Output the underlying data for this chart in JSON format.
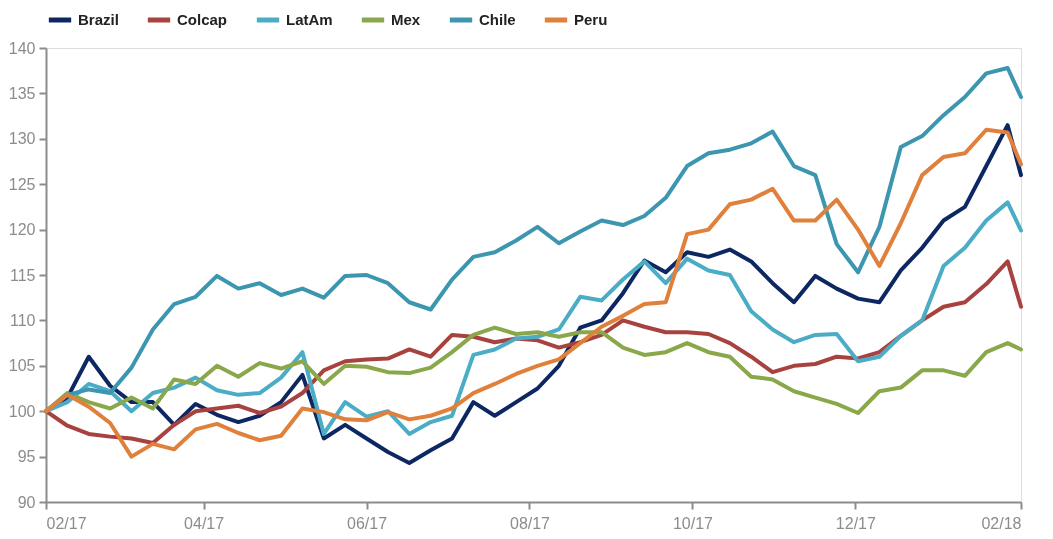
{
  "chart_data": {
    "type": "line",
    "x": [
      "2017-02-01",
      "2017-02-09",
      "2017-02-17",
      "2017-02-25",
      "2017-03-05",
      "2017-03-13",
      "2017-03-21",
      "2017-03-29",
      "2017-04-06",
      "2017-04-14",
      "2017-04-22",
      "2017-04-30",
      "2017-05-08",
      "2017-05-16",
      "2017-05-24",
      "2017-06-01",
      "2017-06-09",
      "2017-06-17",
      "2017-06-25",
      "2017-07-03",
      "2017-07-11",
      "2017-07-19",
      "2017-07-27",
      "2017-08-04",
      "2017-08-12",
      "2017-08-20",
      "2017-08-28",
      "2017-09-05",
      "2017-09-13",
      "2017-09-21",
      "2017-09-29",
      "2017-10-07",
      "2017-10-15",
      "2017-10-23",
      "2017-10-31",
      "2017-11-08",
      "2017-11-16",
      "2017-11-24",
      "2017-12-02",
      "2017-12-10",
      "2017-12-18",
      "2017-12-26",
      "2018-01-03",
      "2018-01-11",
      "2018-01-19",
      "2018-01-27",
      "2018-02-01"
    ],
    "series": [
      {
        "name": "Brazil",
        "color": "#0d2763",
        "values": [
          100,
          101.5,
          106,
          102.8,
          101,
          101,
          98.5,
          100.8,
          99.6,
          98.8,
          99.5,
          101,
          104,
          97,
          98.5,
          97,
          95.5,
          94.3,
          95.7,
          97,
          101,
          99.5,
          101,
          102.5,
          105,
          109.2,
          110,
          113,
          116.6,
          115.3,
          117.5,
          117,
          117.8,
          116.5,
          114.1,
          112,
          114.9,
          113.5,
          112.4,
          112,
          115.5,
          118,
          121,
          122.5,
          127,
          131.5,
          126
        ]
      },
      {
        "name": "Colcap",
        "color": "#a8423f",
        "values": [
          100,
          98.4,
          97.5,
          97.2,
          97,
          96.5,
          98.5,
          100,
          100.3,
          100.6,
          99.8,
          100.5,
          102,
          104.5,
          105.5,
          105.7,
          105.8,
          106.8,
          106,
          108.4,
          108.2,
          107.6,
          108,
          107.8,
          107,
          107.6,
          108.4,
          110,
          109.3,
          108.7,
          108.7,
          108.5,
          107.5,
          106,
          104.3,
          105,
          105.2,
          106,
          105.8,
          106.5,
          108.3,
          110,
          111.5,
          112,
          114,
          116.5,
          111.5
        ]
      },
      {
        "name": "LatAm",
        "color": "#4bacc6",
        "values": [
          100,
          101,
          103,
          102.2,
          100,
          102,
          102.6,
          103.7,
          102.3,
          101.8,
          102,
          103.7,
          106.5,
          97.5,
          101,
          99.4,
          100,
          97.5,
          98.8,
          99.5,
          106.2,
          106.8,
          108,
          108.2,
          109,
          112.6,
          112.2,
          114.5,
          116.5,
          114.1,
          116.8,
          115.5,
          115,
          111,
          109,
          107.6,
          108.4,
          108.5,
          105.5,
          106,
          108.3,
          110,
          116,
          118,
          121,
          123,
          119.9
        ]
      },
      {
        "name": "Mex",
        "color": "#8aa84b",
        "values": [
          100,
          102,
          101,
          100.3,
          101.5,
          100.3,
          103.5,
          103,
          105,
          103.8,
          105.3,
          104.7,
          105.5,
          103,
          105,
          104.9,
          104.3,
          104.2,
          104.8,
          106.5,
          108.4,
          109.2,
          108.5,
          108.7,
          108.2,
          108.7,
          108.7,
          107,
          106.2,
          106.5,
          107.5,
          106.5,
          106,
          103.8,
          103.5,
          102.2,
          101.5,
          100.8,
          99.8,
          102.2,
          102.6,
          104.5,
          104.5,
          103.9,
          106.5,
          107.5,
          106.8
        ]
      },
      {
        "name": "Chile",
        "color": "#3d96b0",
        "values": [
          100,
          101.8,
          102.4,
          102,
          104.8,
          109,
          111.8,
          112.6,
          114.9,
          113.5,
          114.1,
          112.8,
          113.5,
          112.5,
          114.9,
          115,
          114.1,
          112,
          111.2,
          114.5,
          117,
          117.5,
          118.8,
          120.3,
          118.5,
          119.8,
          121,
          120.5,
          121.5,
          123.5,
          127,
          128.4,
          128.8,
          129.5,
          130.8,
          127,
          126,
          118.4,
          115.3,
          120.3,
          129.1,
          130.3,
          132.6,
          134.6,
          137.2,
          137.8,
          134.6
        ]
      },
      {
        "name": "Peru",
        "color": "#e0803a",
        "values": [
          100,
          101.8,
          100.5,
          98.7,
          95,
          96.4,
          95.8,
          98,
          98.6,
          97.6,
          96.8,
          97.3,
          100.3,
          99.9,
          99.1,
          99,
          99.9,
          99.1,
          99.5,
          100.3,
          102,
          103,
          104.1,
          105,
          105.7,
          107.5,
          109.3,
          110.5,
          111.8,
          112,
          119.5,
          120,
          122.8,
          123.3,
          124.5,
          121,
          121,
          123.3,
          120,
          116,
          120.7,
          126,
          128,
          128.4,
          131,
          130.7,
          127.2
        ]
      }
    ],
    "xlim": [
      "2017-02-01",
      "2018-02-01"
    ],
    "xticks": [
      {
        "value": "2017-02-01",
        "label": "02/17"
      },
      {
        "value": "2017-04-01",
        "label": "04/17"
      },
      {
        "value": "2017-06-01",
        "label": "06/17"
      },
      {
        "value": "2017-08-01",
        "label": "08/17"
      },
      {
        "value": "2017-10-01",
        "label": "10/17"
      },
      {
        "value": "2017-12-01",
        "label": "12/17"
      },
      {
        "value": "2018-02-01",
        "label": "02/18"
      }
    ],
    "ylim": [
      90,
      140
    ],
    "yticks": [
      90,
      95,
      100,
      105,
      110,
      115,
      120,
      125,
      130,
      135,
      140
    ],
    "legend": "top",
    "grid": false,
    "marker": "none",
    "line_style": "solid"
  }
}
